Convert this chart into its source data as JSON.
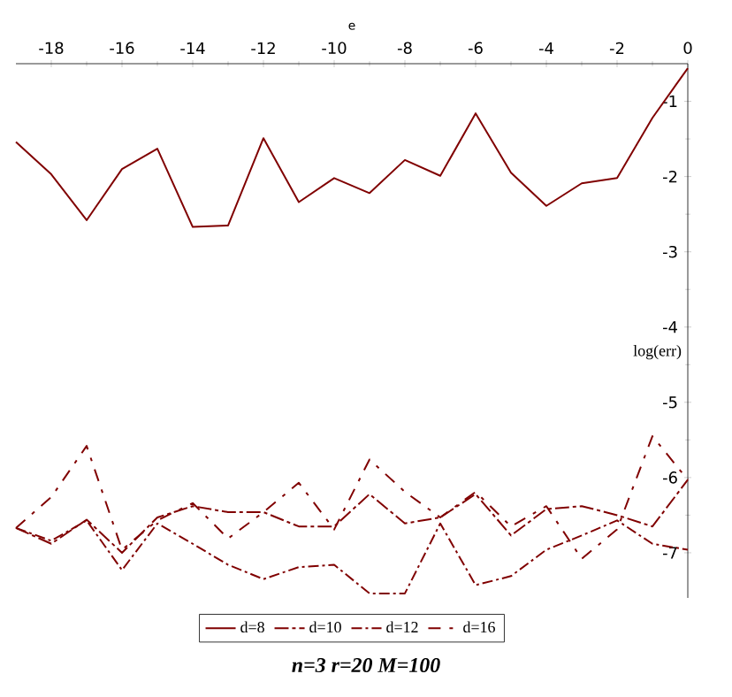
{
  "chart_data": {
    "type": "line",
    "title": "n=3 r=20 M=100",
    "xlabel": "e",
    "ylabel": "log(err)",
    "x": [
      -19,
      -18,
      -17,
      -16,
      -15,
      -14,
      -13,
      -12,
      -11,
      -10,
      -9,
      -8,
      -7,
      -6,
      -5,
      -4,
      -3,
      -2,
      -1,
      0
    ],
    "series": [
      {
        "name": "d=8",
        "color": "#800000",
        "line_style": "solid",
        "values": [
          -1.54,
          -1.97,
          -2.58,
          -1.9,
          -1.63,
          -2.67,
          -2.65,
          -1.49,
          -2.34,
          -2.02,
          -2.22,
          -1.78,
          -1.99,
          -1.16,
          -1.95,
          -2.39,
          -2.09,
          -2.02,
          -1.22,
          -0.56
        ]
      },
      {
        "name": "d=10",
        "color": "#800000",
        "line_style": "longshort",
        "values": [
          -6.67,
          -6.88,
          -6.56,
          -7.0,
          -6.53,
          -6.38,
          -6.46,
          -6.46,
          -6.65,
          -6.65,
          -6.22,
          -6.61,
          -6.53,
          -6.22,
          -6.77,
          -6.42,
          -6.38,
          -6.5,
          -6.65,
          -6.03
        ]
      },
      {
        "name": "d=12",
        "color": "#800000",
        "line_style": "dashdot",
        "values": [
          -6.67,
          -6.84,
          -6.57,
          -7.23,
          -6.61,
          -6.88,
          -7.16,
          -7.35,
          -7.19,
          -7.16,
          -7.54,
          -7.54,
          -6.61,
          -7.43,
          -7.31,
          -6.96,
          -6.77,
          -6.57,
          -6.88,
          -6.96
        ]
      },
      {
        "name": "d=16",
        "color": "#800000",
        "line_style": "longgap",
        "values": [
          -6.67,
          -6.26,
          -5.58,
          -6.96,
          -6.57,
          -6.34,
          -6.81,
          -6.46,
          -6.07,
          -6.69,
          -5.76,
          -6.19,
          -6.53,
          -6.19,
          -6.65,
          -6.38,
          -7.08,
          -6.69,
          -5.45,
          -6.03
        ]
      }
    ],
    "xlim": [
      -19,
      0
    ],
    "ylim": [
      -7.6,
      -0.5
    ],
    "xticks": [
      -18,
      -16,
      -14,
      -12,
      -10,
      -8,
      -6,
      -4,
      -2,
      0
    ],
    "yticks": [
      -1,
      -2,
      -3,
      -4,
      -5,
      -6,
      -7
    ],
    "grid": false,
    "marker": "none",
    "legend": "bottom"
  }
}
